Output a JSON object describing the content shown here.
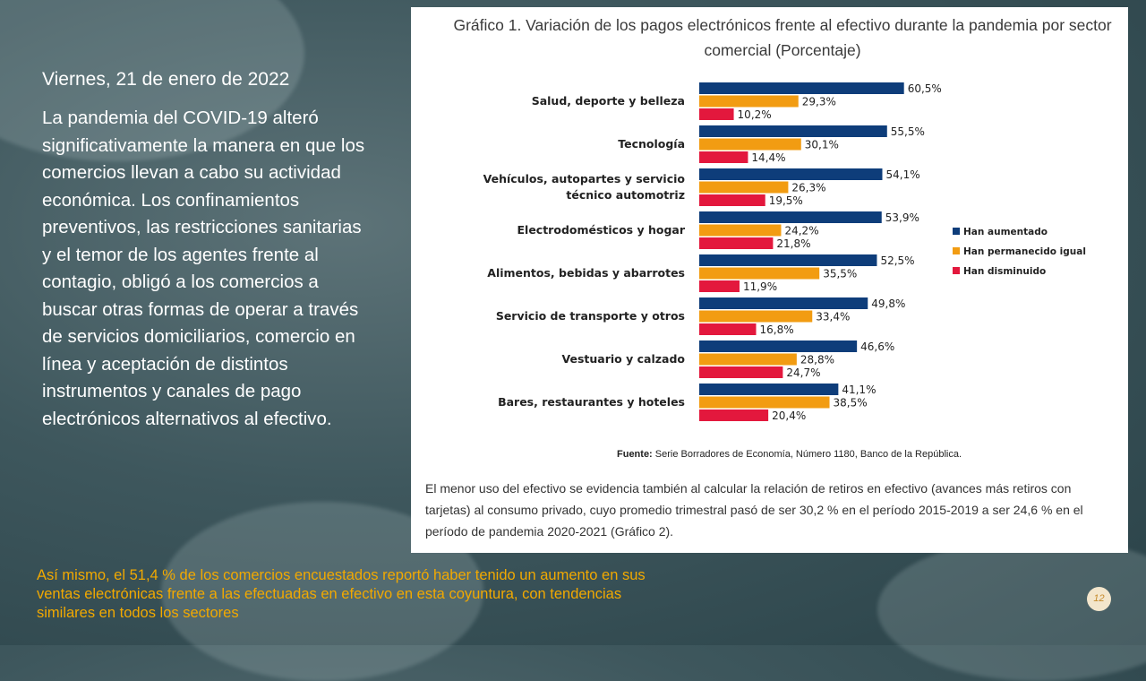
{
  "slide": {
    "date": "Viernes, 21 de enero de 2022",
    "body": "La pandemia del COVID-19 alteró significativamente la manera en que los comercios llevan a cabo su actividad económica. Los confinamientos preventivos, las restricciones sanitarias y el temor de los agentes frente al contagio, obligó a los comercios a buscar otras formas de operar a través de servicios domiciliarios, comercio en línea y aceptación de distintos instrumentos y canales de pago electrónicos alternativos al efectivo.",
    "footer": "Así mismo, el 51,4 % de los comercios encuestados reportó haber tenido un aumento en sus ventas electrónicas frente a las efectuadas en efectivo en esta coyuntura, con tendencias similares en todos los sectores",
    "page_number": "12"
  },
  "chart_source": {
    "label": "Fuente:",
    "text": "Serie Borradores de Economía, Número 1180, Banco de la República."
  },
  "chart_note": "El menor uso del efectivo se evidencia también al calcular la relación de retiros en efectivo (avances más retiros con tarjetas) al consumo privado, cuyo promedio trimestral pasó de ser 30,2 % en el período 2015-2019 a ser 24,6 % en el período de pandemia 2020-2021 (Gráfico 2).",
  "chart_data": {
    "type": "bar",
    "orientation": "horizontal",
    "title": "Gráfico 1. Variación de los pagos electrónicos frente al efectivo durante la pandemia por sector comercial (Porcentaje)",
    "categories": [
      [
        "Salud, deporte y belleza"
      ],
      [
        "Tecnología"
      ],
      [
        "Vehículos, autopartes y servicio",
        "técnico automotriz"
      ],
      [
        "Electrodomésticos y hogar"
      ],
      [
        "Alimentos, bebidas y abarrotes"
      ],
      [
        "Servicio de transporte y otros"
      ],
      [
        "Vestuario y calzado"
      ],
      [
        "Bares, restaurantes y hoteles"
      ]
    ],
    "series": [
      {
        "name": "Han aumentado",
        "color": "#0e3d7a",
        "values": [
          60.5,
          55.5,
          54.1,
          53.9,
          52.5,
          49.8,
          46.6,
          41.1
        ],
        "labels": [
          "60,5%",
          "55,5%",
          "54,1%",
          "53,9%",
          "52,5%",
          "49,8%",
          "46,6%",
          "41,1%"
        ]
      },
      {
        "name": "Han permanecido igual",
        "color": "#f29c12",
        "values": [
          29.3,
          30.1,
          26.3,
          24.2,
          35.5,
          33.4,
          28.8,
          38.5
        ],
        "labels": [
          "29,3%",
          "30,1%",
          "26,3%",
          "24,2%",
          "35,5%",
          "33,4%",
          "28,8%",
          "38,5%"
        ]
      },
      {
        "name": "Han disminuido",
        "color": "#e3183d",
        "values": [
          10.2,
          14.4,
          19.5,
          21.8,
          11.9,
          16.8,
          24.7,
          20.4
        ],
        "labels": [
          "10,2%",
          "14,4%",
          "19,5%",
          "21,8%",
          "11,9%",
          "16,8%",
          "24,7%",
          "20,4%"
        ]
      }
    ],
    "legend_position": "right",
    "grid": false
  }
}
